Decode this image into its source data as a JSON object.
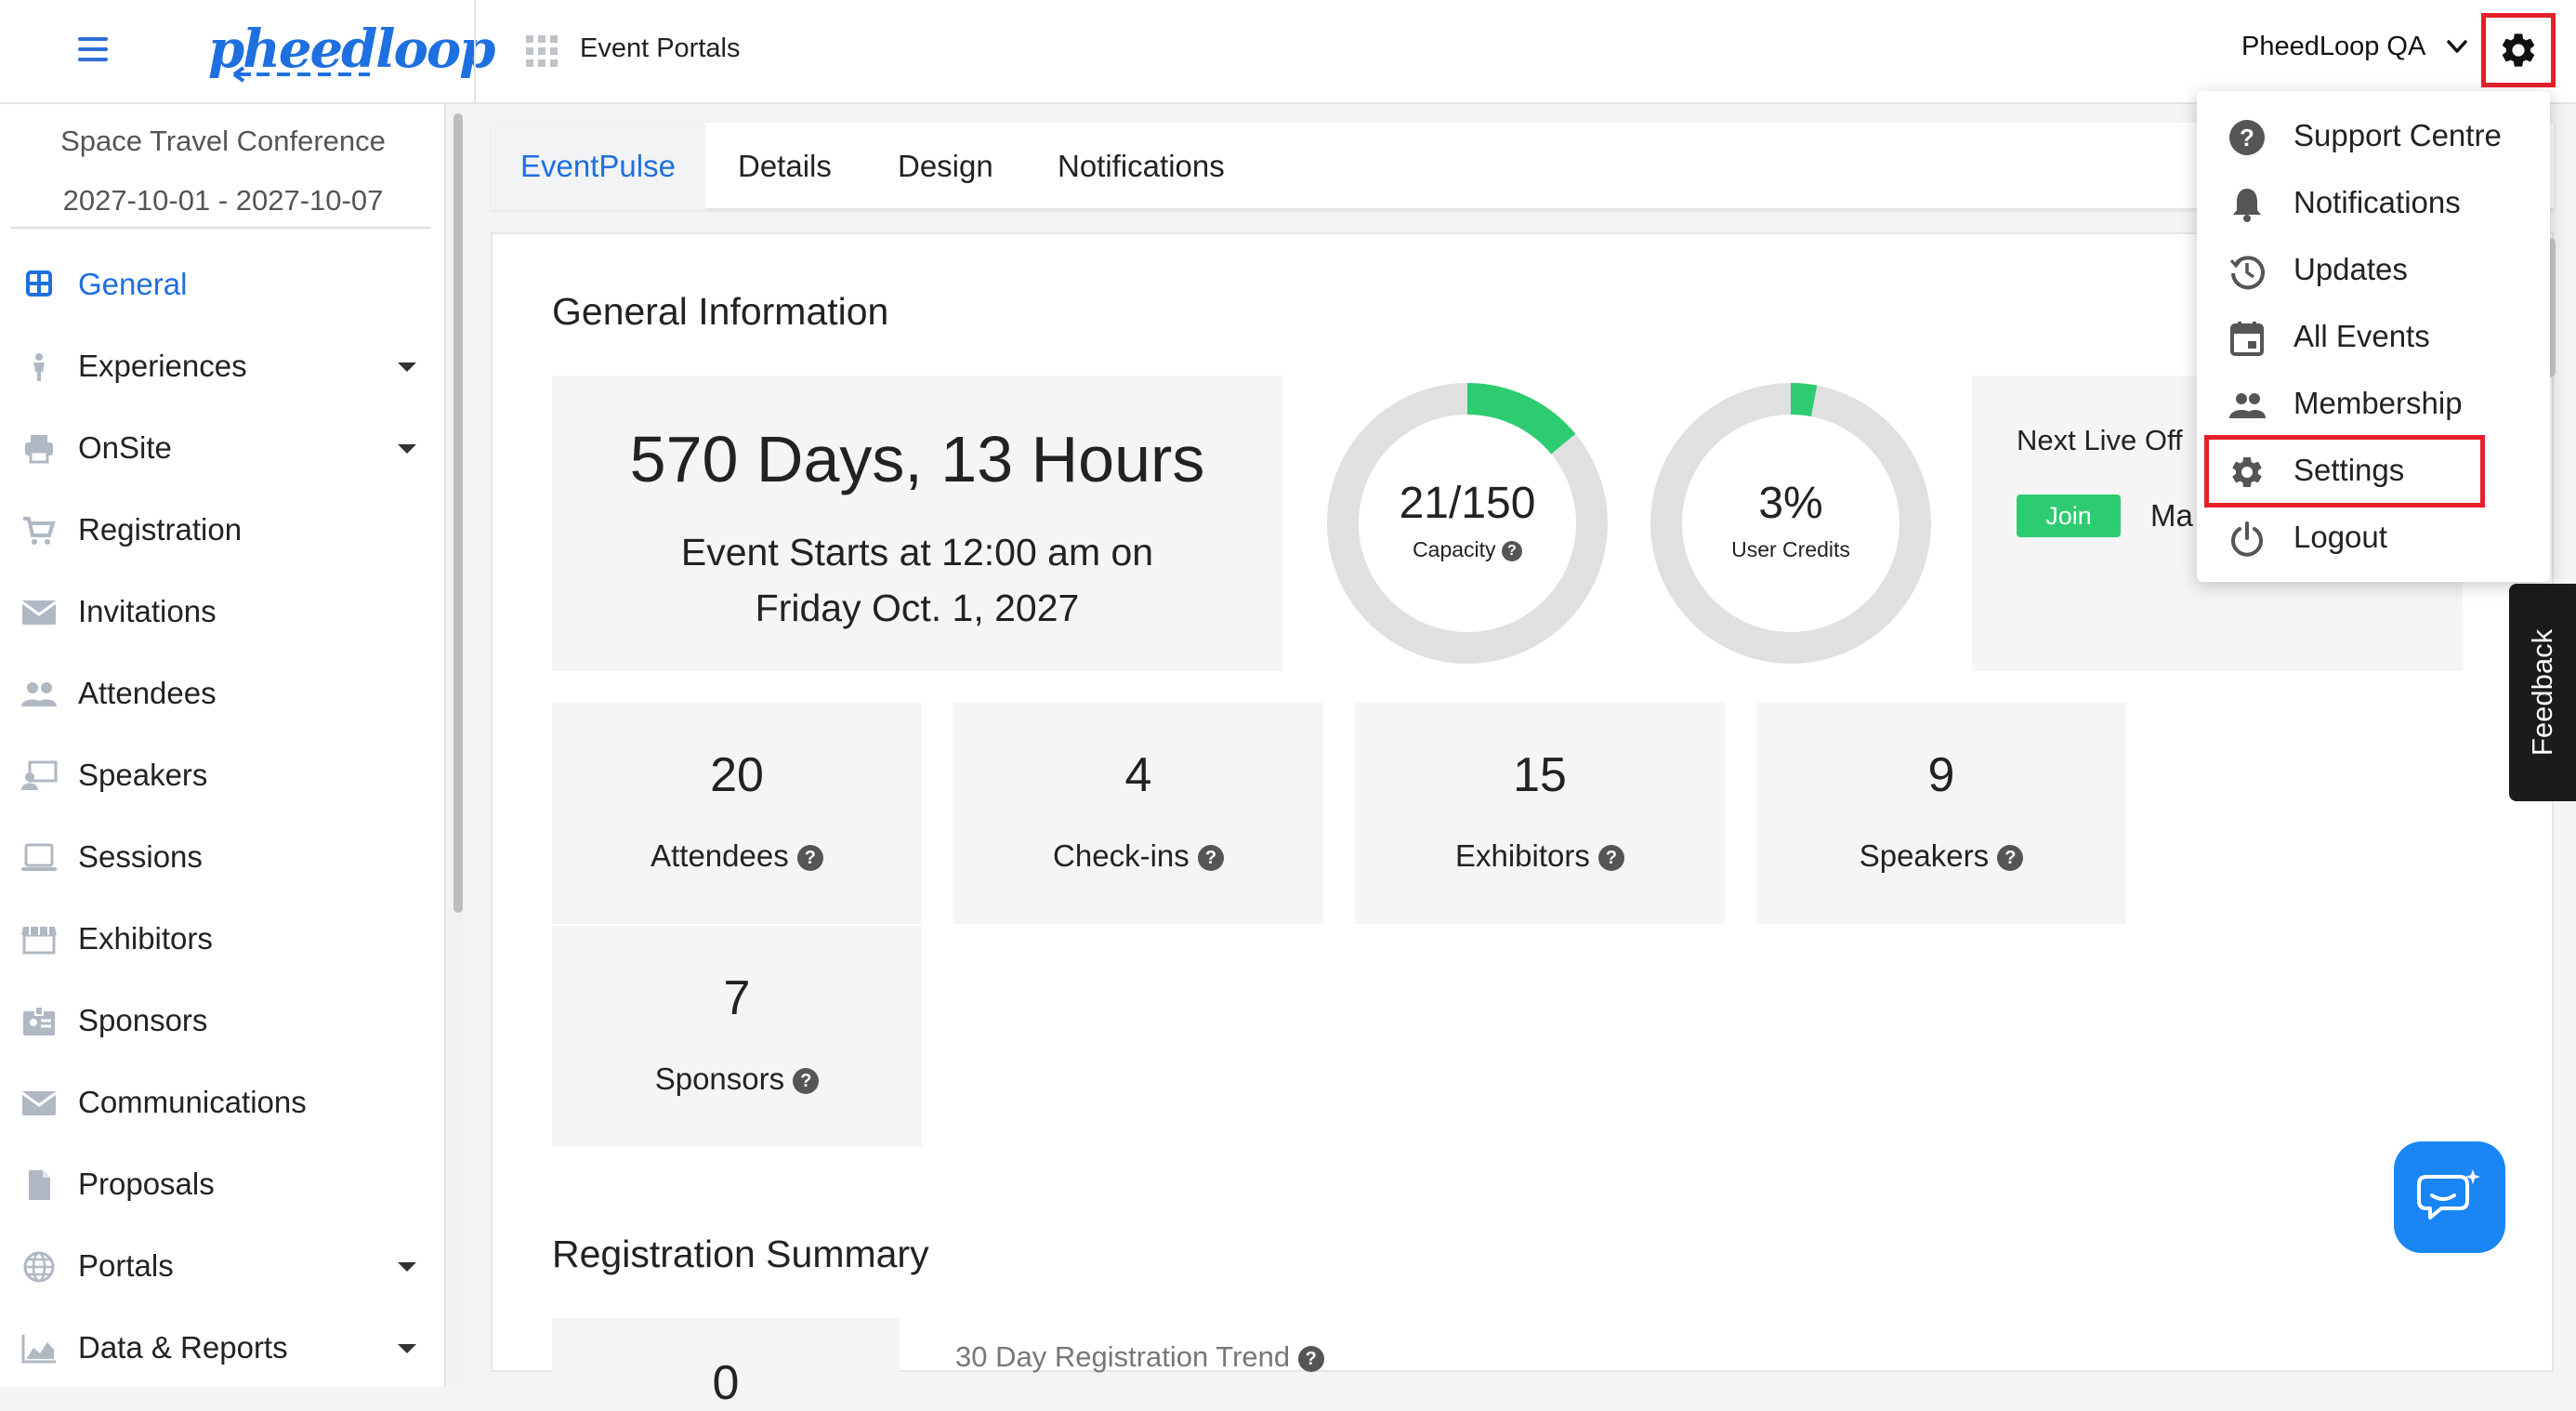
{
  "topbar": {
    "logo_text": "pheedloop",
    "section_label": "Event Portals",
    "org_name": "PheedLoop QA"
  },
  "sidebar": {
    "event_name": "Space Travel Conference",
    "event_dates": "2027-10-01 - 2027-10-07",
    "items": [
      {
        "label": "General",
        "icon": "grid-icon",
        "active": true
      },
      {
        "label": "Experiences",
        "icon": "person-icon",
        "has_caret": true
      },
      {
        "label": "OnSite",
        "icon": "printer-icon",
        "has_caret": true
      },
      {
        "label": "Registration",
        "icon": "cart-icon"
      },
      {
        "label": "Invitations",
        "icon": "envelope-icon"
      },
      {
        "label": "Attendees",
        "icon": "people-icon"
      },
      {
        "label": "Speakers",
        "icon": "speaker-icon"
      },
      {
        "label": "Sessions",
        "icon": "laptop-icon"
      },
      {
        "label": "Exhibitors",
        "icon": "store-icon"
      },
      {
        "label": "Sponsors",
        "icon": "badge-icon"
      },
      {
        "label": "Communications",
        "icon": "envelope-icon"
      },
      {
        "label": "Proposals",
        "icon": "document-icon"
      },
      {
        "label": "Portals",
        "icon": "globe-icon",
        "has_caret": true
      },
      {
        "label": "Data & Reports",
        "icon": "chart-icon",
        "has_caret": true
      }
    ]
  },
  "tabs": [
    {
      "label": "EventPulse",
      "active": true
    },
    {
      "label": "Details"
    },
    {
      "label": "Design"
    },
    {
      "label": "Notifications"
    }
  ],
  "general_info": {
    "title": "General Information",
    "countdown": "570 Days, 13 Hours",
    "starts_line1": "Event Starts at 12:00 am on",
    "starts_line2": "Friday Oct. 1, 2027",
    "capacity": {
      "value": "21/150",
      "label": "Capacity",
      "fraction": 0.14
    },
    "credits": {
      "value": "3%",
      "label": "User Credits",
      "fraction": 0.03
    },
    "next_live": {
      "label": "Next Live Off",
      "join_label": "Join",
      "trailing": "Ma"
    }
  },
  "stats": [
    {
      "value": "20",
      "label": "Attendees"
    },
    {
      "value": "4",
      "label": "Check-ins"
    },
    {
      "value": "15",
      "label": "Exhibitors"
    },
    {
      "value": "9",
      "label": "Speakers"
    },
    {
      "value": "7",
      "label": "Sponsors"
    }
  ],
  "registration": {
    "title": "Registration Summary",
    "partial_value": "0",
    "trend_label": "30 Day Registration Trend"
  },
  "dropdown": {
    "items": [
      {
        "label": "Support Centre",
        "icon": "help-circle-icon"
      },
      {
        "label": "Notifications",
        "icon": "bell-icon"
      },
      {
        "label": "Updates",
        "icon": "history-icon"
      },
      {
        "label": "All Events",
        "icon": "calendar-icon"
      },
      {
        "label": "Membership",
        "icon": "people-icon"
      },
      {
        "label": "Settings",
        "icon": "gear-icon"
      },
      {
        "label": "Logout",
        "icon": "power-icon"
      }
    ]
  },
  "feedback_label": "Feedback",
  "colors": {
    "accent": "#1e6fe0",
    "success": "#2ecc71",
    "highlight": "#e5202a",
    "donut_track": "#e0e0e0"
  }
}
